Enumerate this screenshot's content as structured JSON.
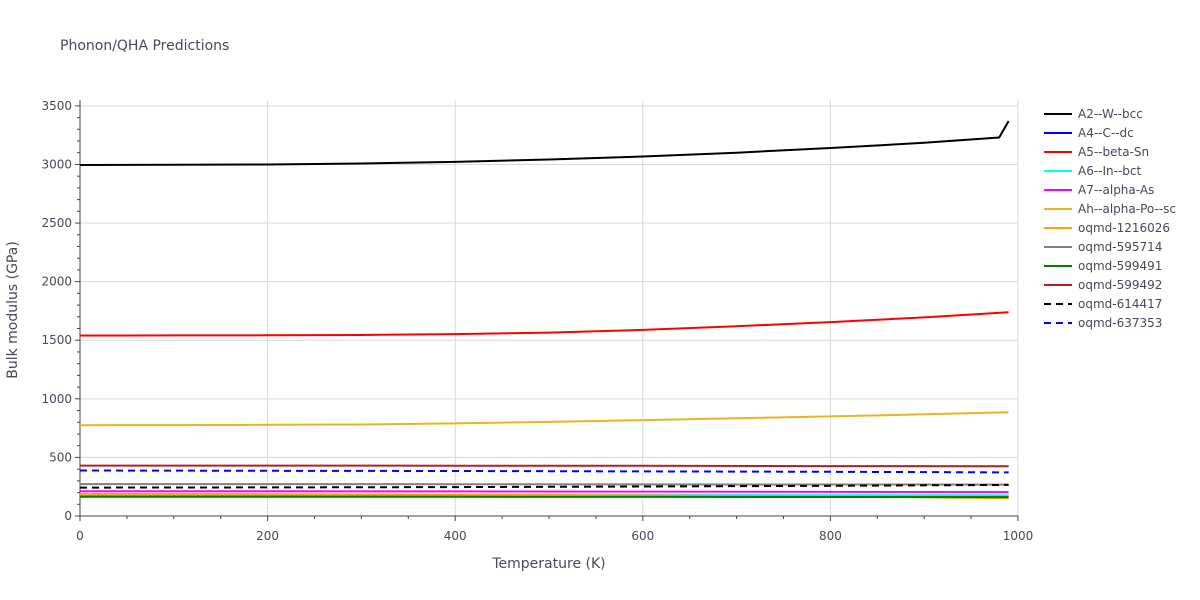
{
  "chart_data": {
    "type": "line",
    "title": "Phonon/QHA Predictions",
    "xlabel": "Temperature (K)",
    "ylabel": "Bulk modulus (GPa)",
    "xlim": [
      0,
      1000
    ],
    "ylim": [
      0,
      3550
    ],
    "xticks": [
      0,
      200,
      400,
      600,
      800,
      1000
    ],
    "yticks": [
      0,
      500,
      1000,
      1500,
      2000,
      2500,
      3000,
      3500
    ],
    "grid": true,
    "legend_position": "right",
    "series": [
      {
        "name": "A2--W--bcc",
        "color": "#000000",
        "dash": false,
        "x": [
          0,
          100,
          200,
          300,
          400,
          500,
          600,
          700,
          800,
          900,
          980,
          990
        ],
        "y": [
          2995,
          2997,
          3000,
          3008,
          3022,
          3042,
          3068,
          3100,
          3140,
          3185,
          3230,
          3370
        ]
      },
      {
        "name": "A4--C--dc",
        "color": "#0000ff",
        "dash": false,
        "x": [
          0,
          200,
          400,
          600,
          800,
          990
        ],
        "y": [
          178,
          178,
          177,
          176,
          175,
          174
        ]
      },
      {
        "name": "A5--beta-Sn",
        "color": "#ff0000",
        "dash": false,
        "x": [
          0,
          100,
          200,
          300,
          400,
          500,
          600,
          700,
          800,
          900,
          990
        ],
        "y": [
          1540,
          1541,
          1542,
          1545,
          1552,
          1565,
          1588,
          1620,
          1655,
          1695,
          1738
        ]
      },
      {
        "name": "A6--In--bct",
        "color": "#00ffff",
        "dash": false,
        "x": [
          0,
          200,
          400,
          600,
          800,
          990
        ],
        "y": [
          182,
          181,
          180,
          179,
          178,
          177
        ]
      },
      {
        "name": "A7--alpha-As",
        "color": "#ff00ff",
        "dash": false,
        "x": [
          0,
          200,
          400,
          600,
          800,
          990
        ],
        "y": [
          212,
          211,
          210,
          208,
          206,
          204
        ]
      },
      {
        "name": "Ah--alpha-Po--sc",
        "color": "#ebb31e",
        "dash": false,
        "x": [
          0,
          100,
          200,
          300,
          400,
          500,
          600,
          700,
          800,
          900,
          990
        ],
        "y": [
          775,
          776,
          778,
          781,
          790,
          803,
          818,
          835,
          850,
          868,
          885
        ]
      },
      {
        "name": "oqmd-1216026",
        "color": "#ffa500",
        "dash": false,
        "x": [
          0,
          200,
          400,
          600,
          800,
          990
        ],
        "y": [
          188,
          186,
          182,
          176,
          166,
          152
        ]
      },
      {
        "name": "oqmd-595714",
        "color": "#808080",
        "dash": false,
        "x": [
          0,
          200,
          400,
          600,
          800,
          990
        ],
        "y": [
          272,
          272,
          271,
          270,
          269,
          268
        ]
      },
      {
        "name": "oqmd-599491",
        "color": "#008000",
        "dash": false,
        "x": [
          0,
          200,
          400,
          600,
          800,
          990
        ],
        "y": [
          165,
          165,
          164,
          163,
          162,
          161
        ]
      },
      {
        "name": "oqmd-599492",
        "color": "#b22222",
        "dash": false,
        "x": [
          0,
          200,
          400,
          600,
          800,
          990
        ],
        "y": [
          430,
          430,
          429,
          428,
          426,
          424
        ]
      },
      {
        "name": "oqmd-614417",
        "color": "#000000",
        "dash": true,
        "x": [
          0,
          200,
          400,
          600,
          800,
          990
        ],
        "y": [
          242,
          244,
          247,
          252,
          258,
          265
        ]
      },
      {
        "name": "oqmd-637353",
        "color": "#0000ff",
        "dash": true,
        "x": [
          0,
          200,
          400,
          600,
          800,
          990
        ],
        "y": [
          388,
          386,
          384,
          381,
          377,
          372
        ]
      }
    ]
  }
}
